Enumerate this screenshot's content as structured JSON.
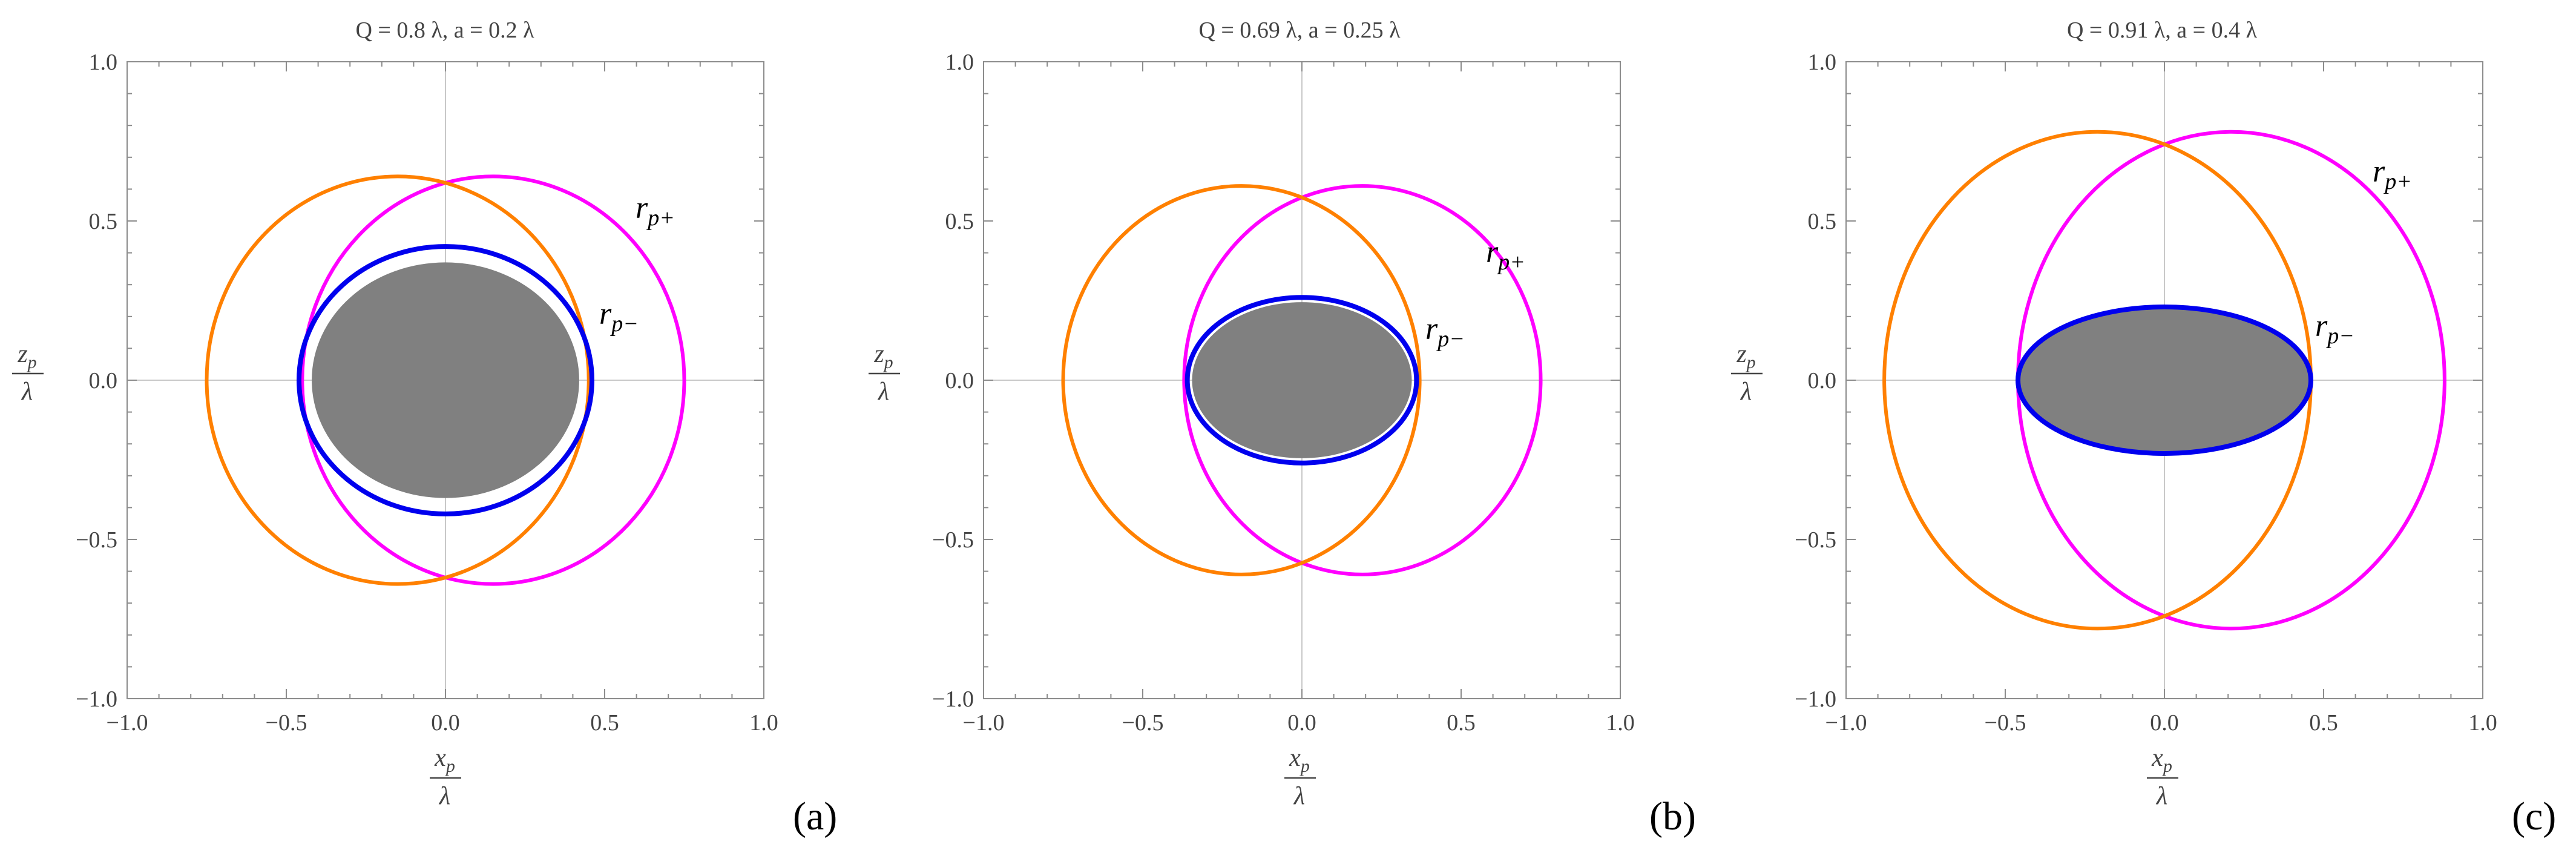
{
  "figure": {
    "panels": [
      {
        "letter": "(a)",
        "title": "Q = 0.8 λ, a = 0.2 λ",
        "xlabel_num": "x",
        "xlabel_sub": "p",
        "xlabel_den": "λ",
        "ylabel_num": "z",
        "ylabel_sub": "p",
        "ylabel_den": "λ",
        "label_plus": "r",
        "label_plus_sub": "p+",
        "label_minus": "r",
        "label_minus_sub": "p−"
      },
      {
        "letter": "(b)",
        "title": "Q = 0.69 λ, a = 0.25 λ",
        "xlabel_num": "x",
        "xlabel_sub": "p",
        "xlabel_den": "λ",
        "ylabel_num": "z",
        "ylabel_sub": "p",
        "ylabel_den": "λ",
        "label_plus": "r",
        "label_plus_sub": "p+",
        "label_minus": "r",
        "label_minus_sub": "p−"
      },
      {
        "letter": "(c)",
        "title": "Q = 0.91 λ, a = 0.4 λ",
        "xlabel_num": "x",
        "xlabel_sub": "p",
        "xlabel_den": "λ",
        "ylabel_num": "z",
        "ylabel_sub": "p",
        "ylabel_den": "λ",
        "label_plus": "r",
        "label_plus_sub": "p+",
        "label_minus": "r",
        "label_minus_sub": "p−"
      }
    ]
  },
  "chart_data": [
    {
      "type": "line",
      "title": "Q = 0.8 λ, a = 0.2 λ",
      "xlabel": "x_p / λ",
      "ylabel": "z_p / λ",
      "xlim": [
        -1.0,
        1.0
      ],
      "ylim": [
        -1.0,
        1.0
      ],
      "x_ticks": [
        "−1.0",
        "−0.5",
        "0.0",
        "0.5",
        "1.0"
      ],
      "y_ticks": [
        "−1.0",
        "−0.5",
        "0.0",
        "0.5",
        "1.0"
      ],
      "grid": false,
      "zero_lines": true,
      "series": [
        {
          "name": "r_p+",
          "color": "#ff00ff",
          "shape": "ellipse",
          "cx": 0.15,
          "cz": 0.0,
          "rx": 0.6,
          "rz": 0.64
        },
        {
          "name": "",
          "color": "#ff8000",
          "shape": "ellipse",
          "cx": -0.15,
          "cz": 0.0,
          "rx": 0.6,
          "rz": 0.64
        },
        {
          "name": "r_p−",
          "color": "#0000ee",
          "shape": "ellipse",
          "cx": 0.0,
          "cz": 0.0,
          "rx": 0.46,
          "rz": 0.42
        },
        {
          "name": "",
          "color": "#808080",
          "shape": "filled-ellipse",
          "cx": 0.0,
          "cz": 0.0,
          "rx": 0.42,
          "rz": 0.37
        }
      ]
    },
    {
      "type": "line",
      "title": "Q = 0.69 λ, a = 0.25 λ",
      "xlabel": "x_p / λ",
      "ylabel": "z_p / λ",
      "xlim": [
        -1.0,
        1.0
      ],
      "ylim": [
        -1.0,
        1.0
      ],
      "x_ticks": [
        "−1.0",
        "−0.5",
        "0.0",
        "0.5",
        "1.0"
      ],
      "y_ticks": [
        "−1.0",
        "−0.5",
        "0.0",
        "0.5",
        "1.0"
      ],
      "grid": false,
      "zero_lines": true,
      "series": [
        {
          "name": "r_p+",
          "color": "#ff00ff",
          "shape": "ellipse",
          "cx": 0.19,
          "cz": 0.0,
          "rx": 0.56,
          "rz": 0.61
        },
        {
          "name": "",
          "color": "#ff8000",
          "shape": "ellipse",
          "cx": -0.19,
          "cz": 0.0,
          "rx": 0.56,
          "rz": 0.61
        },
        {
          "name": "r_p−",
          "color": "#0000ee",
          "shape": "ellipse",
          "cx": 0.0,
          "cz": 0.0,
          "rx": 0.36,
          "rz": 0.26
        },
        {
          "name": "",
          "color": "#808080",
          "shape": "filled-ellipse",
          "cx": 0.0,
          "cz": 0.0,
          "rx": 0.345,
          "rz": 0.245
        }
      ]
    },
    {
      "type": "line",
      "title": "Q = 0.91 λ, a = 0.4 λ",
      "xlabel": "x_p / λ",
      "ylabel": "z_p / λ",
      "xlim": [
        -1.0,
        1.0
      ],
      "ylim": [
        -1.0,
        1.0
      ],
      "x_ticks": [
        "−1.0",
        "−0.5",
        "0.0",
        "0.5",
        "1.0"
      ],
      "y_ticks": [
        "−1.0",
        "−0.5",
        "0.0",
        "0.5",
        "1.0"
      ],
      "grid": false,
      "zero_lines": true,
      "series": [
        {
          "name": "r_p+",
          "color": "#ff00ff",
          "shape": "ellipse",
          "cx": 0.21,
          "cz": 0.0,
          "rx": 0.67,
          "rz": 0.78
        },
        {
          "name": "",
          "color": "#ff8000",
          "shape": "ellipse",
          "cx": -0.21,
          "cz": 0.0,
          "rx": 0.67,
          "rz": 0.78
        },
        {
          "name": "r_p−",
          "color": "#0000ee",
          "shape": "ellipse",
          "cx": 0.0,
          "cz": 0.0,
          "rx": 0.46,
          "rz": 0.23
        },
        {
          "name": "",
          "color": "#808080",
          "shape": "filled-ellipse",
          "cx": 0.0,
          "cz": 0.0,
          "rx": 0.455,
          "rz": 0.225
        }
      ]
    }
  ]
}
